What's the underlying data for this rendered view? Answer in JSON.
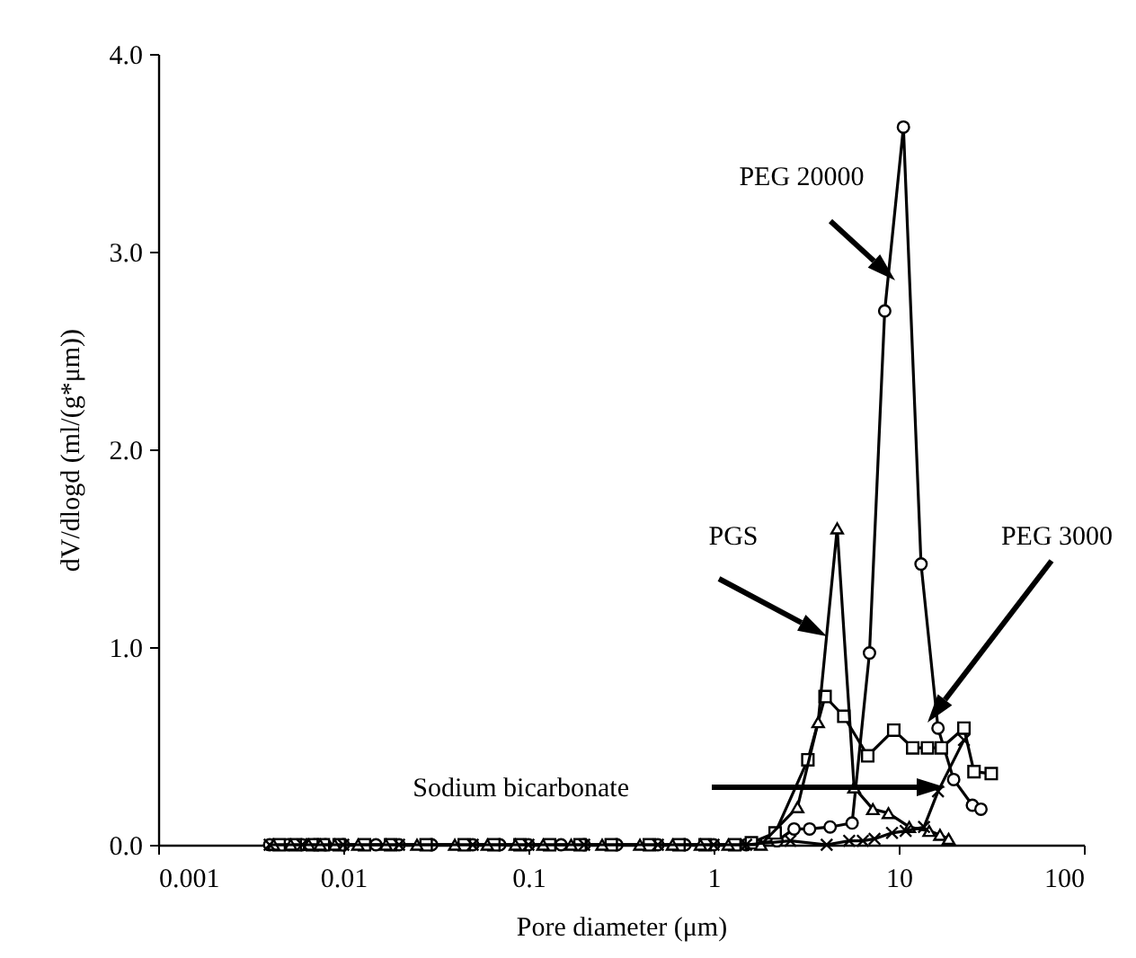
{
  "chart_data": {
    "type": "line",
    "xlabel": "Pore diameter (μm)",
    "ylabel": "dV/dlogd (ml/(g*μm))",
    "log": "x",
    "xlim": [
      0.001,
      100
    ],
    "xticks": [
      0.001,
      0.01,
      0.1,
      1,
      10,
      100
    ],
    "ylim": [
      0,
      4
    ],
    "yticks": [
      {
        "value": 0,
        "label": "0.0"
      },
      {
        "value": 1,
        "label": "1.0"
      },
      {
        "value": 2,
        "label": "2.0"
      },
      {
        "value": 3,
        "label": "3.0"
      },
      {
        "value": 4,
        "label": "4.0"
      }
    ],
    "grid": false,
    "series": [
      {
        "color": "#000000",
        "marker": "circle",
        "x": [
          0.004,
          0.005,
          0.006,
          0.007,
          0.008,
          0.01,
          0.015,
          0.02,
          0.03,
          0.05,
          0.07,
          0.1,
          0.15,
          0.2,
          0.3,
          0.5,
          0.7,
          1,
          1.5,
          2.2,
          2.72,
          3.3,
          4.26,
          5.6,
          6.95,
          8.4,
          10.6,
          13.2,
          16.3,
          19.8,
          25,
          27.8
        ],
        "values": [
          0,
          0,
          0,
          0,
          0,
          0,
          0,
          0,
          0,
          0,
          0,
          0,
          0,
          0,
          0,
          0,
          0,
          0,
          0,
          0.02,
          0.08,
          0.08,
          0.09,
          0.11,
          0.97,
          2.7,
          3.63,
          1.42,
          0.59,
          0.33,
          0.2,
          0.18
        ]
      },
      {
        "color": "#000000",
        "marker": "square",
        "x": [
          0.0045,
          0.0055,
          0.0068,
          0.0078,
          0.0095,
          0.013,
          0.018,
          0.028,
          0.045,
          0.065,
          0.09,
          0.13,
          0.19,
          0.28,
          0.45,
          0.65,
          0.9,
          1.3,
          1.6,
          2.15,
          3.23,
          4.0,
          5.05,
          6.8,
          9.4,
          11.9,
          14.3,
          17.0,
          22.5,
          25.5,
          31.6
        ],
        "values": [
          0,
          0,
          0,
          0,
          0,
          0,
          0,
          0,
          0,
          0,
          0,
          0,
          0,
          0,
          0,
          0,
          0,
          0,
          0.01,
          0.06,
          0.43,
          0.75,
          0.65,
          0.45,
          0.58,
          0.49,
          0.49,
          0.49,
          0.59,
          0.37,
          0.36
        ]
      },
      {
        "color": "#000000",
        "marker": "triangle",
        "x": [
          0.0042,
          0.0052,
          0.0065,
          0.0075,
          0.009,
          0.012,
          0.017,
          0.025,
          0.04,
          0.06,
          0.085,
          0.12,
          0.17,
          0.25,
          0.4,
          0.6,
          0.85,
          1.2,
          1.8,
          2.84,
          3.67,
          4.65,
          5.74,
          7.25,
          8.8,
          11.4,
          14.6,
          16.7,
          18.6
        ],
        "values": [
          0,
          0,
          0,
          0,
          0,
          0,
          0,
          0,
          0,
          0,
          0,
          0,
          0,
          0,
          0,
          0,
          0,
          0,
          0,
          0.19,
          0.62,
          1.6,
          0.29,
          0.18,
          0.16,
          0.09,
          0.07,
          0.05,
          0.03
        ]
      },
      {
        "color": "#000000",
        "marker": "cross",
        "x": [
          0.004,
          0.006,
          0.01,
          0.02,
          0.05,
          0.1,
          0.2,
          0.5,
          1,
          1.5,
          2.6,
          4.08,
          5.4,
          6.4,
          7.4,
          9.2,
          10.9,
          13.7,
          16.3,
          22.5
        ],
        "values": [
          0,
          0,
          0,
          0,
          0,
          0,
          0,
          0,
          0,
          0,
          0.02,
          0,
          0.02,
          0.02,
          0.03,
          0.06,
          0.07,
          0.09,
          0.27,
          0.53
        ]
      }
    ],
    "annotations": [
      "PEG 20000",
      "PGS",
      "PEG 3000",
      "Sodium bicarbonate"
    ]
  }
}
